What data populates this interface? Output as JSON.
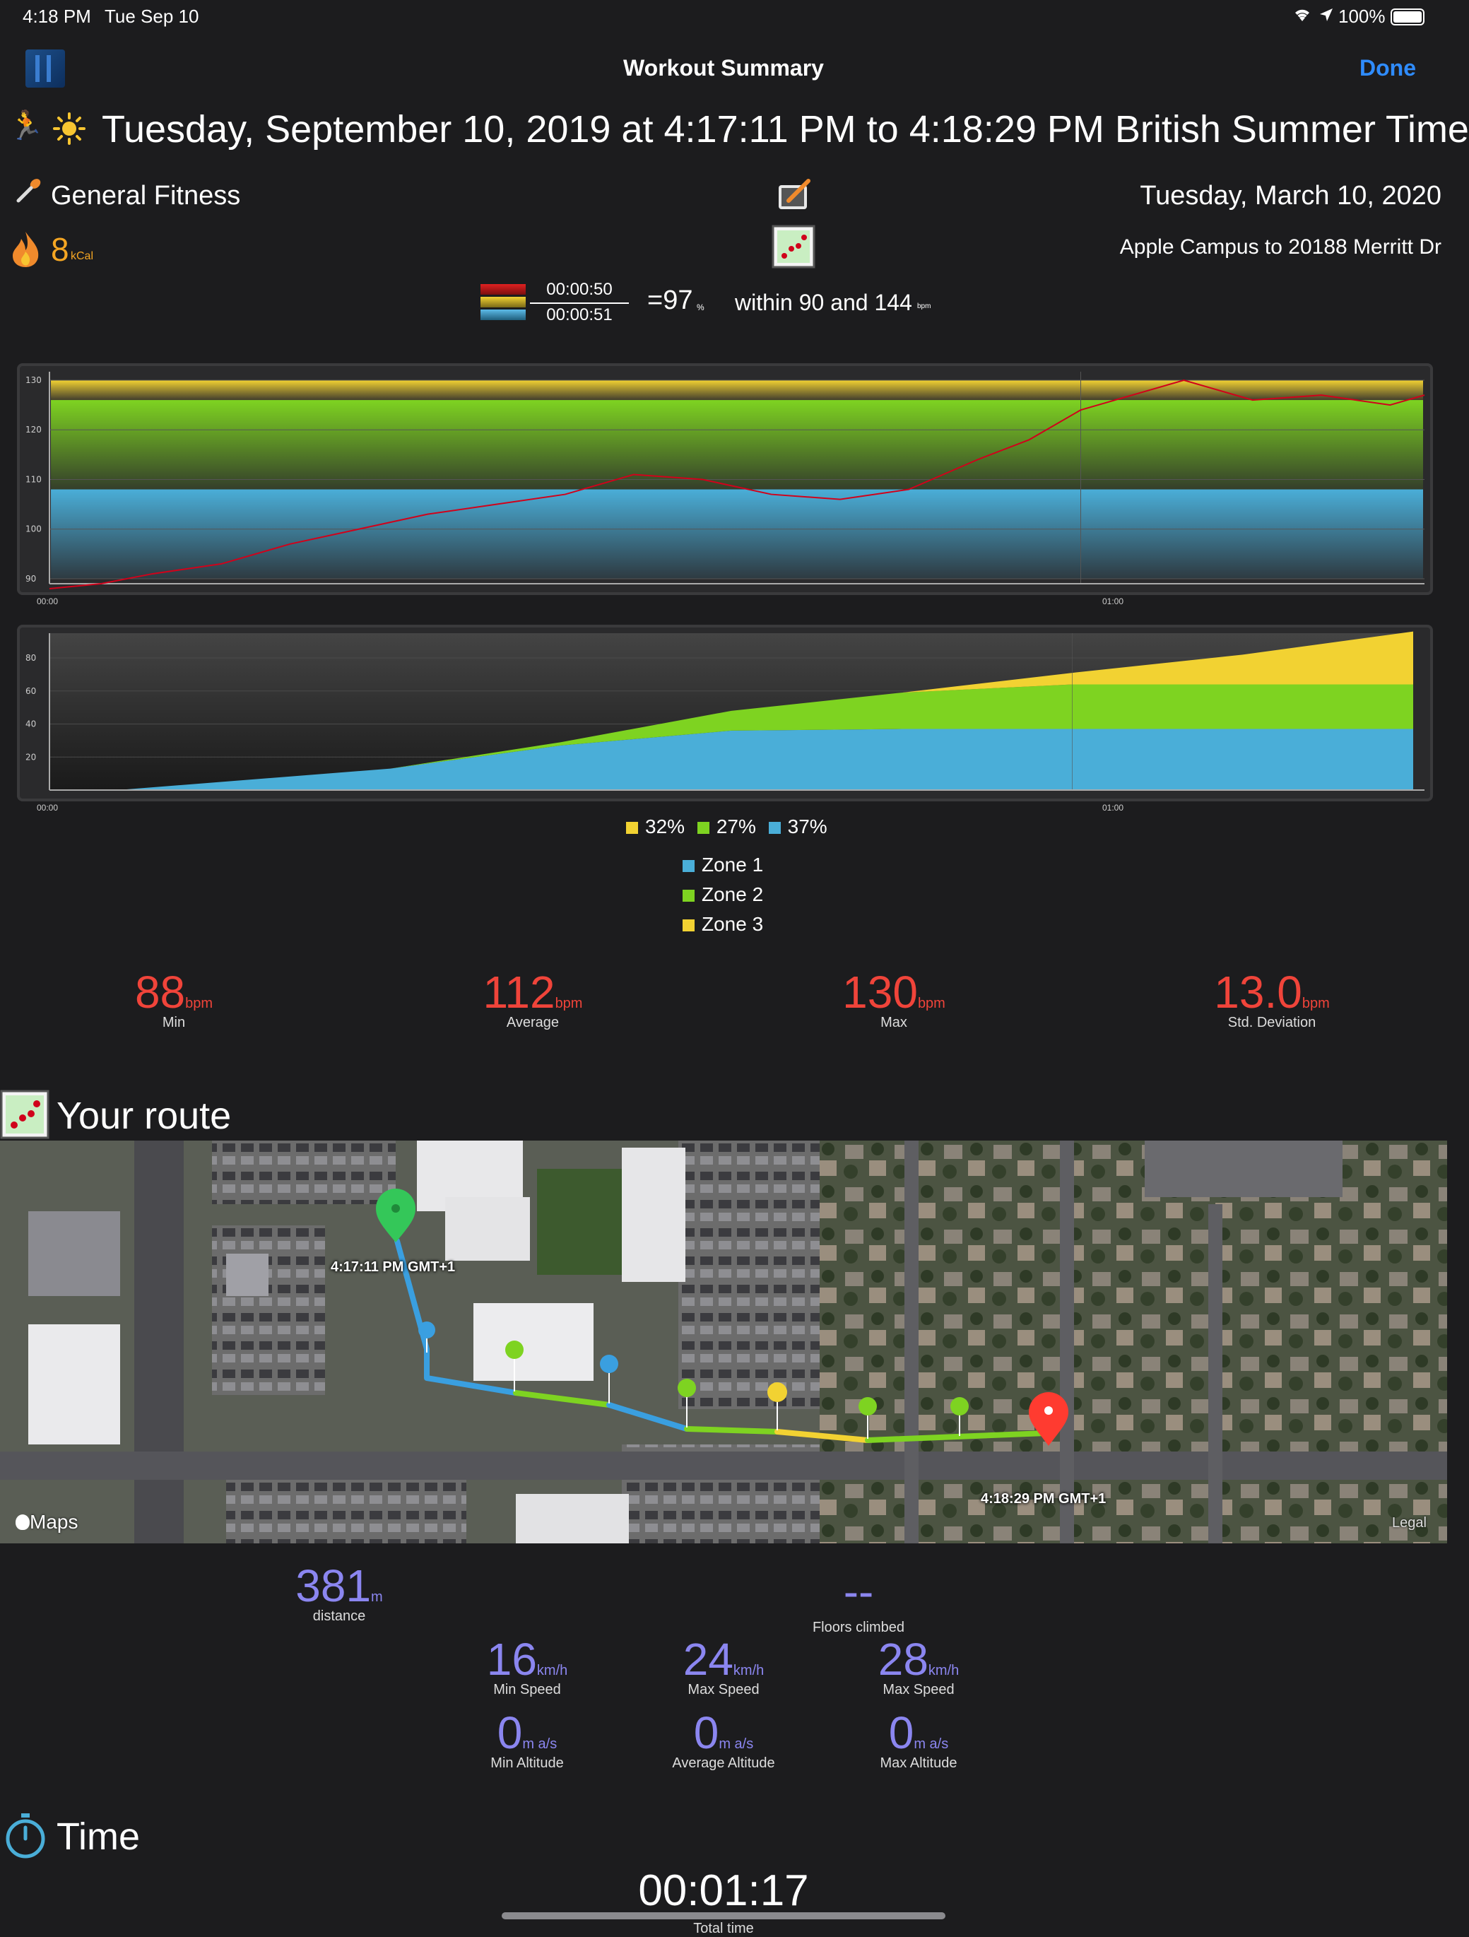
{
  "status_bar": {
    "time": "4:18 PM",
    "date": "Tue Sep 10",
    "battery": "100%"
  },
  "nav": {
    "title": "Workout Summary",
    "done_label": "Done"
  },
  "header": {
    "title": "Tuesday, September 10, 2019 at 4:17:11 PM to 4:18:29 PM British Summer Time",
    "activity": "General Fitness",
    "date_right": "Tuesday, March 10, 2020",
    "calories_value": "8",
    "calories_unit": "kCal",
    "route_desc": "Apple Campus to 20188 Merritt Dr"
  },
  "zone_summary": {
    "time_in": "00:00:50",
    "time_total": "00:00:51",
    "percent": "=97",
    "percent_unit": "%",
    "within_text": "within 90 and 144",
    "within_unit": "bpm"
  },
  "colors": {
    "zone1": "#4aaed8",
    "zone2": "#7ed321",
    "zone3": "#f2d232",
    "hr_line": "#d0021b",
    "accent_red": "#f0443a",
    "accent_purple": "#8b86f0",
    "done_blue": "#2f8cff"
  },
  "chart_data": [
    {
      "type": "line",
      "ylim": [
        89,
        130
      ],
      "yticks": [
        "90",
        "100",
        "110",
        "120",
        "130"
      ],
      "xticks": [
        "00:00",
        "01:00"
      ],
      "x_seconds": [
        0,
        3,
        6,
        10,
        14,
        18,
        22,
        26,
        30,
        34,
        38,
        42,
        46,
        50,
        54,
        57,
        60,
        63,
        66,
        70,
        74,
        78,
        80
      ],
      "series": [
        {
          "values": [
            88,
            89,
            91,
            93,
            97,
            100,
            103,
            105,
            107,
            111,
            110,
            107,
            106,
            108,
            114,
            118,
            124,
            127,
            130,
            126,
            127,
            125,
            127
          ]
        }
      ],
      "zone_bands": [
        {
          "zone": "zone1",
          "from": 90,
          "to": 108
        },
        {
          "zone": "zone2",
          "from": 108,
          "to": 126
        },
        {
          "zone": "zone3",
          "from": 126,
          "to": 130
        }
      ]
    },
    {
      "type": "area",
      "ylim": [
        0,
        95
      ],
      "yticks": [
        "20",
        "40",
        "60",
        "80"
      ],
      "xticks": [
        "00:00",
        "01:00"
      ],
      "x_seconds": [
        0,
        4,
        20,
        30,
        40,
        50,
        60,
        70,
        80
      ],
      "series": [
        {
          "name": "Zone 1",
          "color_key": "zone1",
          "values": [
            0,
            0,
            13,
            27,
            36,
            37,
            37,
            37,
            37
          ]
        },
        {
          "name": "Zone 2",
          "color_key": "zone2",
          "values": [
            0,
            0,
            0,
            2,
            12,
            22,
            27,
            27,
            27
          ]
        },
        {
          "name": "Zone 3",
          "color_key": "zone3",
          "values": [
            0,
            0,
            0,
            0,
            0,
            0,
            7,
            18,
            32
          ]
        }
      ]
    }
  ],
  "zone_percent": {
    "z3": "32%",
    "z2": "27%",
    "z1": "37%"
  },
  "legend": {
    "z1": "Zone 1",
    "z2": "Zone 2",
    "z3": "Zone 3"
  },
  "hr_stats": [
    {
      "value": "88",
      "unit": "bpm",
      "label": "Min"
    },
    {
      "value": "112",
      "unit": "bpm",
      "label": "Average"
    },
    {
      "value": "130",
      "unit": "bpm",
      "label": "Max"
    },
    {
      "value": "13.0",
      "unit": "bpm",
      "label": "Std. Deviation"
    }
  ],
  "route": {
    "title": "Your route",
    "start_label": "4:17:11 PM GMT+1",
    "end_label": "4:18:29 PM GMT+1",
    "maps_label": "Maps",
    "legal_label": "Legal"
  },
  "route_stats": {
    "distance": {
      "value": "381",
      "unit": "m",
      "label": "distance"
    },
    "floors": {
      "value": "--",
      "label": "Floors climbed"
    },
    "speeds": [
      {
        "value": "16",
        "unit": "km/h",
        "label": "Min Speed"
      },
      {
        "value": "24",
        "unit": "km/h",
        "label": "Max Speed"
      },
      {
        "value": "28",
        "unit": "km/h",
        "label": "Max Speed"
      }
    ],
    "altitudes": [
      {
        "value": "0",
        "unit": "m a/s",
        "label": "Min Altitude"
      },
      {
        "value": "0",
        "unit": "m a/s",
        "label": "Average Altitude"
      },
      {
        "value": "0",
        "unit": "m a/s",
        "label": "Max Altitude"
      }
    ]
  },
  "time_section": {
    "title": "Time",
    "total": "00:01:17",
    "total_label": "Total time"
  }
}
